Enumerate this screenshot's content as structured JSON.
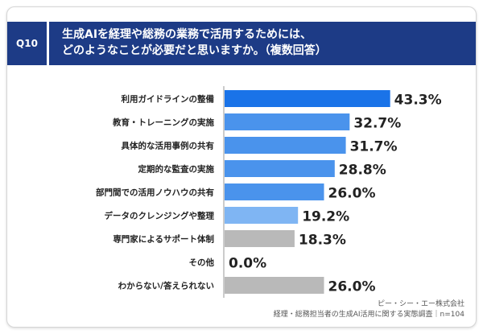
{
  "header": {
    "question_number": "Q10",
    "title_line1": "生成AIを経理や総務の業務で活用するためには、",
    "title_line2": "どのようなことが必要だと思いますか。（複数回答）"
  },
  "chart_data": {
    "type": "bar",
    "orientation": "horizontal",
    "categories": [
      "利用ガイドラインの整備",
      "教育・トレーニングの実施",
      "具体的な活用事例の共有",
      "定期的な監査の実施",
      "部門間での活用ノウハウの共有",
      "データのクレンジングや整理",
      "専門家によるサポート体制",
      "その他",
      "わからない/答えられない"
    ],
    "values": [
      43.3,
      32.7,
      31.7,
      28.8,
      26.0,
      19.2,
      18.3,
      0.0,
      26.0
    ],
    "value_labels": [
      "43.3%",
      "32.7%",
      "31.7%",
      "28.8%",
      "26.0%",
      "19.2%",
      "18.3%",
      "0.0%",
      "26.0%"
    ],
    "bar_colors": [
      "#1a73e8",
      "#4a93ec",
      "#4a93ec",
      "#4a93ec",
      "#4a93ec",
      "#7fb5f3",
      "#b9b9b9",
      "#b9b9b9",
      "#b9b9b9"
    ],
    "xlim": [
      0,
      50
    ],
    "grid": false,
    "legend": "none"
  },
  "footer": {
    "company": "ピー・シー・エー株式会社",
    "survey": "経理・総務担当者の生成AI活用に関する実態調査｜n=104"
  },
  "colors": {
    "header_bg": "#1d3b86",
    "axis_line": "#9a9a9a"
  }
}
